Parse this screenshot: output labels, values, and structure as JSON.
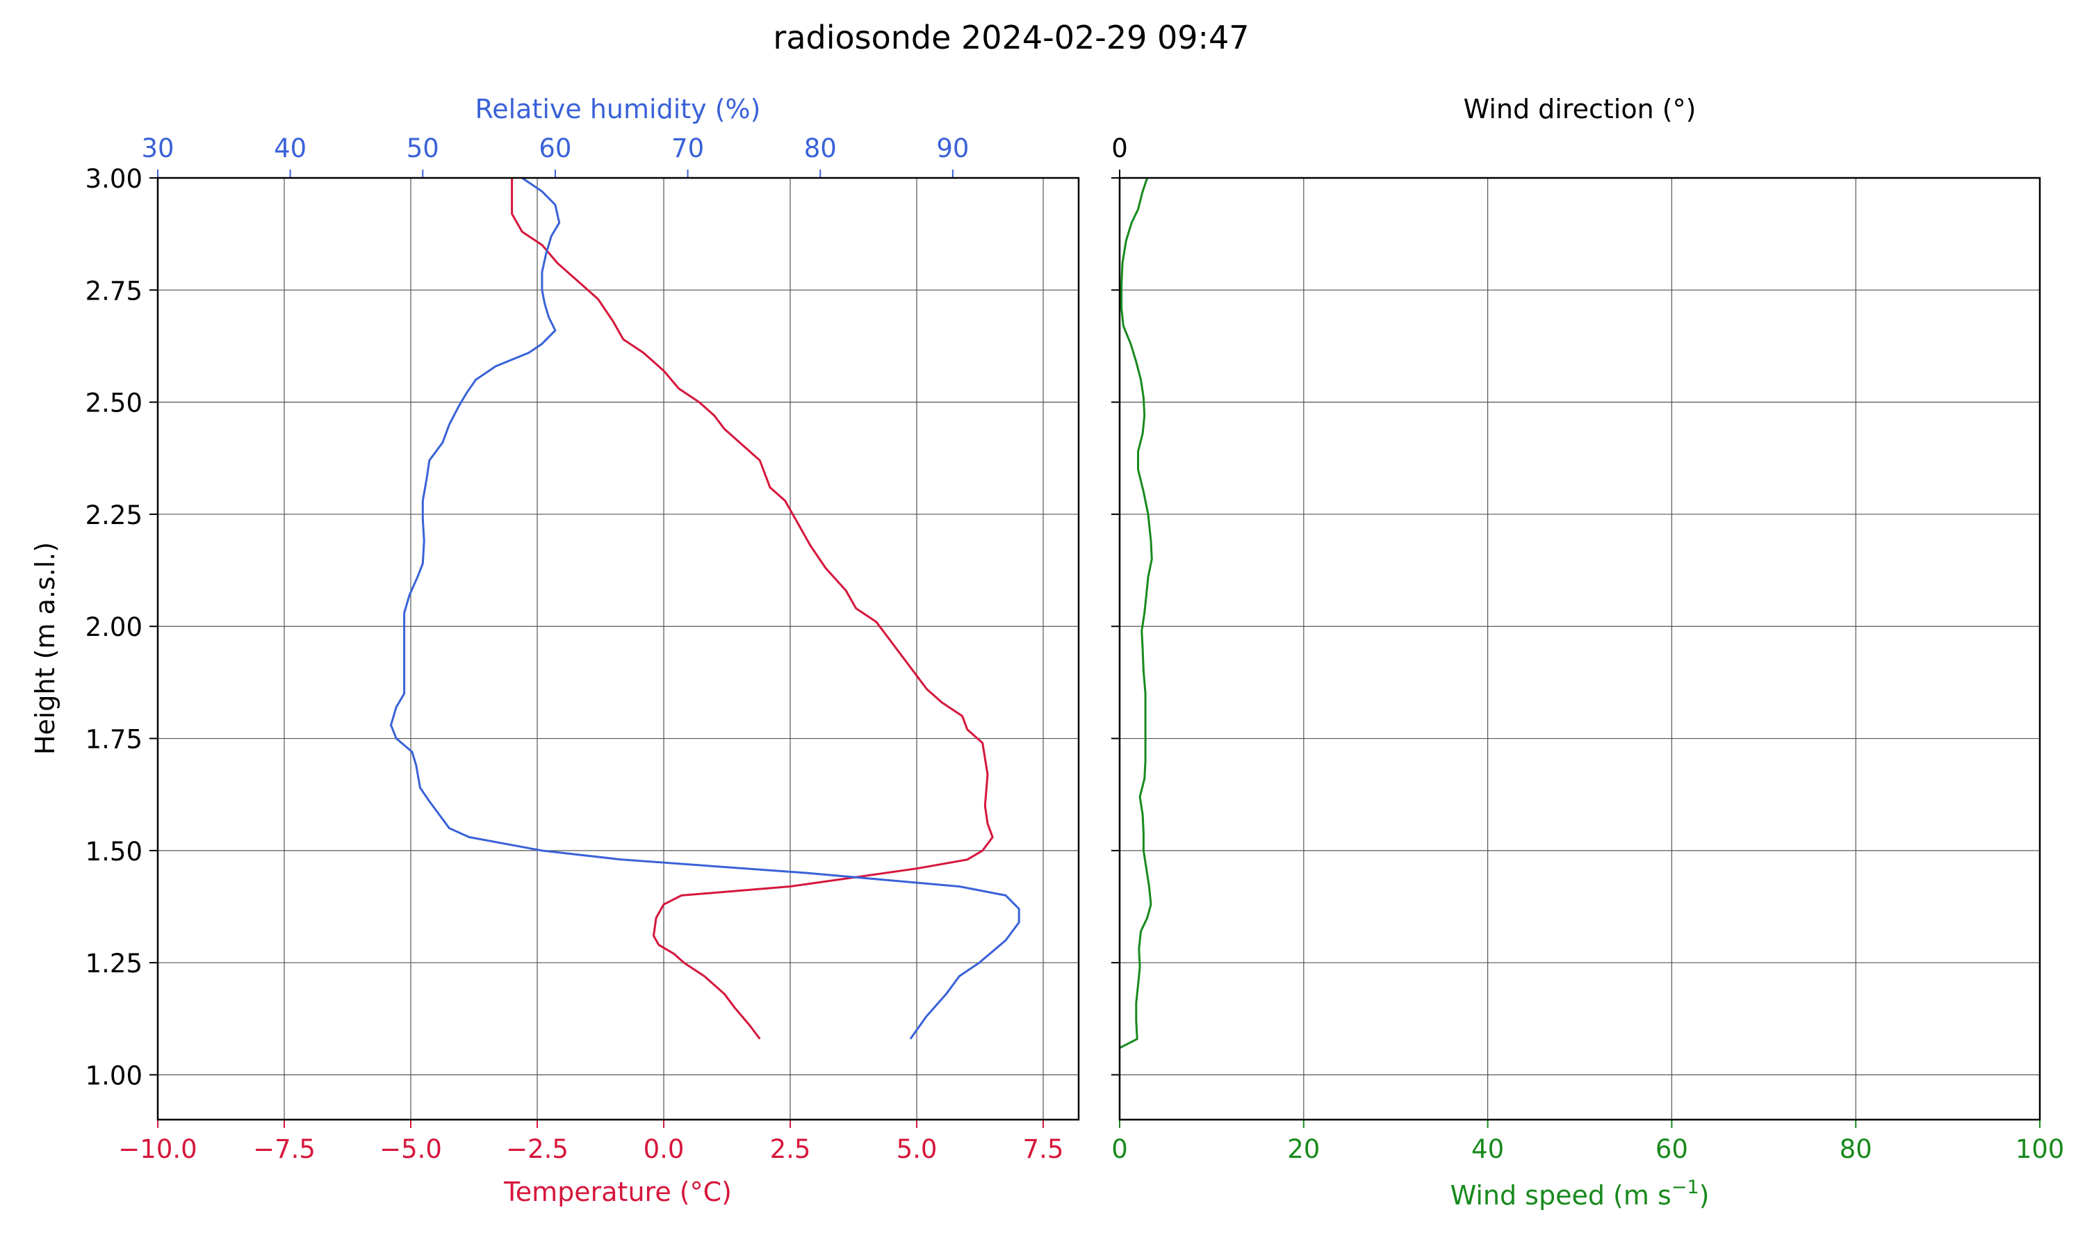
{
  "title": "radiosonde 2024-02-29 09:47",
  "colors": {
    "temperature": "#d6163c",
    "humidity": "#3a62d8",
    "wind_speed": "#188a1d",
    "grid": "#555555",
    "axes": "#000000"
  },
  "chart_data": [
    {
      "type": "line",
      "panel": "left",
      "ylabel": "Height (m a.s.l.)",
      "ylim": [
        0.9,
        3.0
      ],
      "yticks": [
        1.0,
        1.25,
        1.5,
        1.75,
        2.0,
        2.25,
        2.5,
        2.75,
        3.0
      ],
      "ytick_labels": [
        "1.00",
        "1.25",
        "1.50",
        "1.75",
        "2.00",
        "2.25",
        "2.50",
        "2.75",
        "3.00"
      ],
      "grid": true,
      "axes": {
        "bottom": {
          "label": "Temperature (°C)",
          "lim": [
            -10,
            8.2
          ],
          "ticks": [
            -10,
            -7.5,
            -5,
            -2.5,
            0,
            2.5,
            5,
            7.5
          ],
          "tick_labels": [
            "−10.0",
            "−7.5",
            "−5.0",
            "−2.5",
            "0.0",
            "2.5",
            "5.0",
            "7.5"
          ]
        },
        "top": {
          "label": "Relative humidity (%)",
          "lim": [
            30,
            99.5
          ],
          "ticks": [
            30,
            40,
            50,
            60,
            70,
            80,
            90
          ],
          "tick_labels": [
            "30",
            "40",
            "50",
            "60",
            "70",
            "80",
            "90"
          ]
        }
      },
      "series": [
        {
          "key": "temperature",
          "axis": "bottom",
          "points": [
            [
              1.9,
              1.08
            ],
            [
              1.7,
              1.11
            ],
            [
              1.4,
              1.15
            ],
            [
              1.2,
              1.18
            ],
            [
              0.8,
              1.22
            ],
            [
              0.4,
              1.25
            ],
            [
              0.2,
              1.27
            ],
            [
              -0.1,
              1.29
            ],
            [
              -0.2,
              1.31
            ],
            [
              -0.15,
              1.35
            ],
            [
              0.0,
              1.38
            ],
            [
              0.35,
              1.4
            ],
            [
              2.5,
              1.42
            ],
            [
              5.0,
              1.46
            ],
            [
              6.0,
              1.48
            ],
            [
              6.3,
              1.5
            ],
            [
              6.5,
              1.53
            ],
            [
              6.4,
              1.56
            ],
            [
              6.35,
              1.6
            ],
            [
              6.4,
              1.67
            ],
            [
              6.3,
              1.74
            ],
            [
              6.0,
              1.77
            ],
            [
              5.9,
              1.8
            ],
            [
              5.5,
              1.83
            ],
            [
              5.2,
              1.86
            ],
            [
              5.0,
              1.89
            ],
            [
              4.8,
              1.92
            ],
            [
              4.6,
              1.95
            ],
            [
              4.4,
              1.98
            ],
            [
              4.2,
              2.01
            ],
            [
              3.8,
              2.04
            ],
            [
              3.6,
              2.08
            ],
            [
              3.2,
              2.13
            ],
            [
              2.9,
              2.18
            ],
            [
              2.6,
              2.24
            ],
            [
              2.4,
              2.28
            ],
            [
              2.1,
              2.31
            ],
            [
              1.9,
              2.37
            ],
            [
              1.6,
              2.4
            ],
            [
              1.2,
              2.44
            ],
            [
              1.0,
              2.47
            ],
            [
              0.7,
              2.5
            ],
            [
              0.3,
              2.53
            ],
            [
              0.0,
              2.57
            ],
            [
              -0.4,
              2.61
            ],
            [
              -0.8,
              2.64
            ],
            [
              -1.0,
              2.68
            ],
            [
              -1.3,
              2.73
            ],
            [
              -1.7,
              2.77
            ],
            [
              -2.1,
              2.81
            ],
            [
              -2.4,
              2.85
            ],
            [
              -2.8,
              2.88
            ],
            [
              -3.0,
              2.92
            ],
            [
              -3.0,
              2.96
            ],
            [
              -3.0,
              3.0
            ]
          ]
        },
        {
          "key": "humidity",
          "axis": "top",
          "points": [
            [
              86.8,
              1.08
            ],
            [
              88.0,
              1.13
            ],
            [
              89.5,
              1.18
            ],
            [
              90.5,
              1.22
            ],
            [
              92.0,
              1.25
            ],
            [
              93.2,
              1.28
            ],
            [
              94.0,
              1.3
            ],
            [
              95.0,
              1.34
            ],
            [
              95.0,
              1.37
            ],
            [
              94.0,
              1.4
            ],
            [
              90.5,
              1.42
            ],
            [
              79.0,
              1.45
            ],
            [
              65.0,
              1.48
            ],
            [
              59.0,
              1.5
            ],
            [
              53.5,
              1.53
            ],
            [
              52.0,
              1.55
            ],
            [
              51.5,
              1.57
            ],
            [
              50.5,
              1.61
            ],
            [
              49.8,
              1.64
            ],
            [
              49.5,
              1.69
            ],
            [
              49.2,
              1.72
            ],
            [
              48.0,
              1.75
            ],
            [
              47.6,
              1.78
            ],
            [
              48.0,
              1.82
            ],
            [
              48.6,
              1.85
            ],
            [
              48.6,
              1.9
            ],
            [
              48.6,
              1.95
            ],
            [
              48.6,
              2.0
            ],
            [
              48.6,
              2.03
            ],
            [
              49.0,
              2.07
            ],
            [
              49.6,
              2.11
            ],
            [
              50.0,
              2.14
            ],
            [
              50.1,
              2.19
            ],
            [
              50.0,
              2.24
            ],
            [
              50.0,
              2.28
            ],
            [
              50.3,
              2.33
            ],
            [
              50.5,
              2.37
            ],
            [
              51.5,
              2.41
            ],
            [
              52.0,
              2.45
            ],
            [
              52.7,
              2.49
            ],
            [
              53.3,
              2.52
            ],
            [
              54.0,
              2.55
            ],
            [
              55.5,
              2.58
            ],
            [
              58.0,
              2.61
            ],
            [
              59.0,
              2.63
            ],
            [
              60.0,
              2.66
            ],
            [
              59.5,
              2.69
            ],
            [
              59.2,
              2.72
            ],
            [
              59.0,
              2.75
            ],
            [
              59.0,
              2.79
            ],
            [
              59.3,
              2.83
            ],
            [
              59.7,
              2.87
            ],
            [
              60.3,
              2.9
            ],
            [
              60.0,
              2.94
            ],
            [
              59.0,
              2.97
            ],
            [
              58.0,
              2.99
            ],
            [
              57.5,
              3.0
            ]
          ]
        }
      ]
    },
    {
      "type": "line",
      "panel": "right",
      "ylim": [
        0.9,
        3.0
      ],
      "yticks": [
        1.0,
        1.25,
        1.5,
        1.75,
        2.0,
        2.25,
        2.5,
        2.75,
        3.0
      ],
      "grid": true,
      "axes": {
        "bottom": {
          "label_main": "Wind speed (m s",
          "label_sup": "−1",
          "label_end": ")",
          "lim": [
            0,
            100
          ],
          "ticks": [
            0,
            20,
            40,
            60,
            80,
            100
          ],
          "tick_labels": [
            "0",
            "20",
            "40",
            "60",
            "80",
            "100"
          ]
        },
        "top": {
          "label": "Wind direction (°)",
          "ticks": [
            0
          ],
          "tick_labels": [
            "0"
          ]
        }
      },
      "series": [
        {
          "key": "wind_speed",
          "axis": "bottom",
          "points": [
            [
              0.0,
              1.06
            ],
            [
              1.9,
              1.08
            ],
            [
              1.8,
              1.12
            ],
            [
              1.8,
              1.16
            ],
            [
              2.0,
              1.2
            ],
            [
              2.2,
              1.24
            ],
            [
              2.1,
              1.28
            ],
            [
              2.3,
              1.32
            ],
            [
              3.0,
              1.35
            ],
            [
              3.4,
              1.38
            ],
            [
              3.2,
              1.42
            ],
            [
              2.9,
              1.46
            ],
            [
              2.6,
              1.5
            ],
            [
              2.6,
              1.54
            ],
            [
              2.5,
              1.58
            ],
            [
              2.2,
              1.62
            ],
            [
              2.7,
              1.66
            ],
            [
              2.8,
              1.7
            ],
            [
              2.8,
              1.75
            ],
            [
              2.8,
              1.8
            ],
            [
              2.8,
              1.85
            ],
            [
              2.6,
              1.9
            ],
            [
              2.5,
              1.95
            ],
            [
              2.4,
              1.99
            ],
            [
              2.7,
              2.03
            ],
            [
              2.9,
              2.07
            ],
            [
              3.1,
              2.11
            ],
            [
              3.5,
              2.15
            ],
            [
              3.4,
              2.19
            ],
            [
              3.1,
              2.25
            ],
            [
              2.6,
              2.3
            ],
            [
              2.0,
              2.35
            ],
            [
              2.0,
              2.39
            ],
            [
              2.5,
              2.43
            ],
            [
              2.7,
              2.47
            ],
            [
              2.6,
              2.51
            ],
            [
              2.3,
              2.55
            ],
            [
              1.8,
              2.59
            ],
            [
              1.2,
              2.63
            ],
            [
              0.4,
              2.67
            ],
            [
              0.2,
              2.71
            ],
            [
              0.2,
              2.76
            ],
            [
              0.3,
              2.81
            ],
            [
              0.7,
              2.86
            ],
            [
              1.3,
              2.9
            ],
            [
              2.0,
              2.93
            ],
            [
              2.5,
              2.97
            ],
            [
              3.0,
              3.0
            ]
          ]
        }
      ]
    }
  ]
}
